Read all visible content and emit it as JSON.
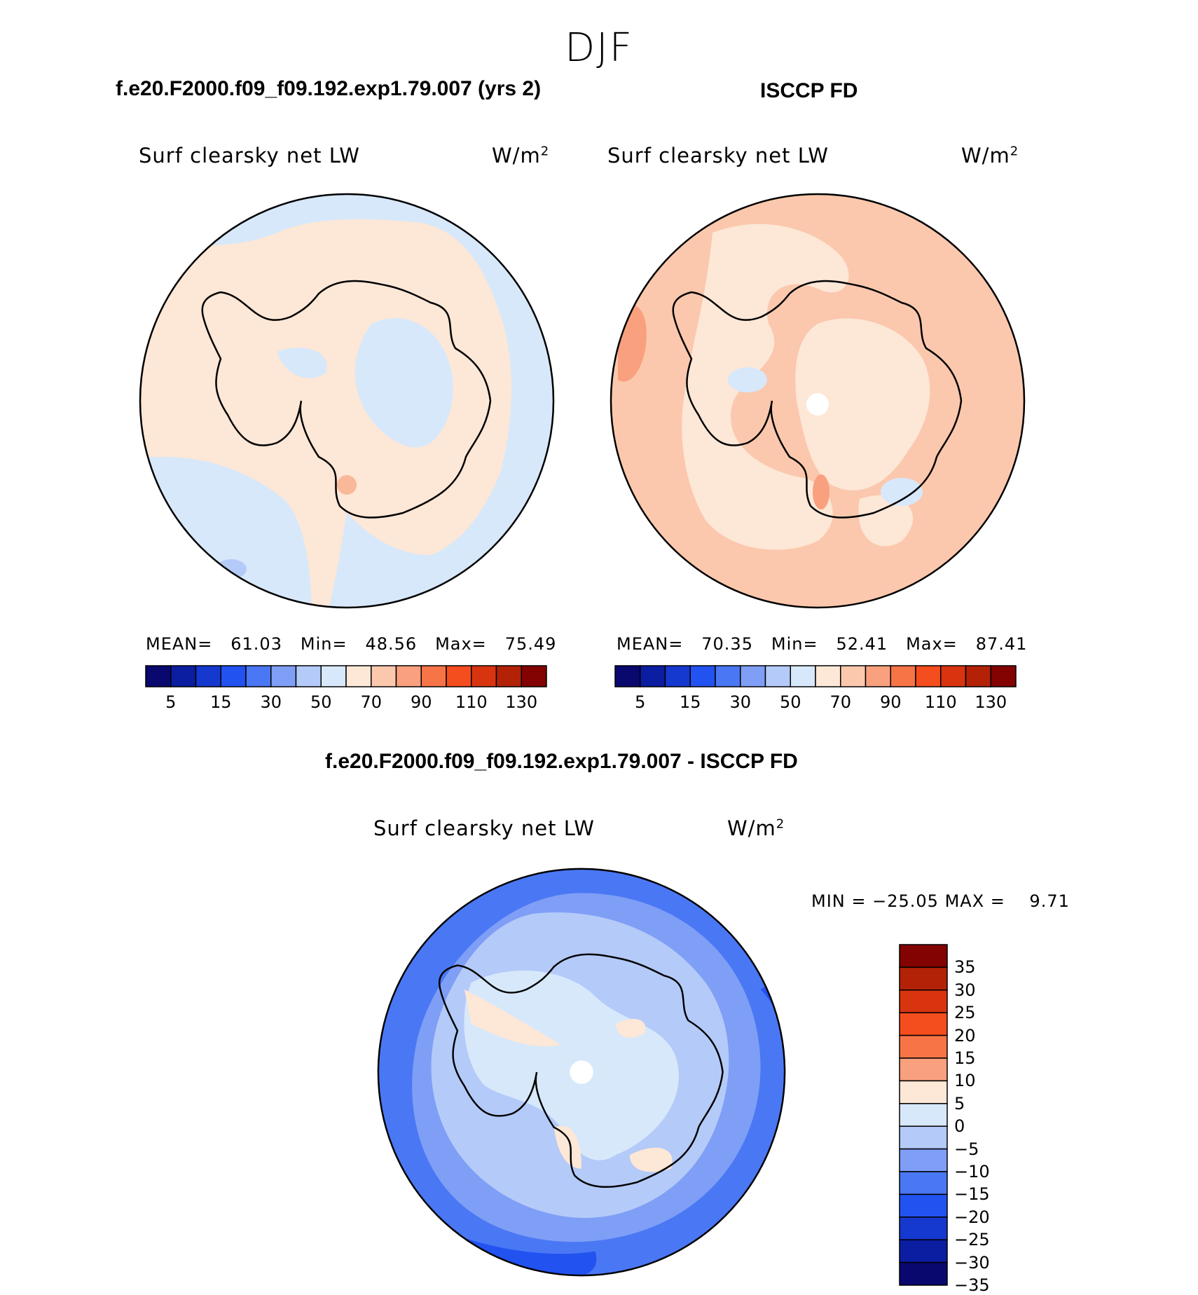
{
  "main_title": "DJF",
  "left_panel": {
    "case": "f.e20.F2000.f09_f09.192.exp1.79.007 (yrs 2)",
    "variable": "Surf clearsky net LW",
    "units_base": "W/m",
    "units_exp": "2",
    "mean_label": "MEAN=",
    "mean": "61.03",
    "min_label": "Min=",
    "min": "48.56",
    "max_label": "Max=",
    "max": "75.49"
  },
  "right_panel": {
    "case": "ISCCP FD",
    "variable": "Surf clearsky net LW",
    "units_base": "W/m",
    "units_exp": "2",
    "mean_label": "MEAN=",
    "mean": "70.35",
    "min_label": "Min=",
    "min": "52.41",
    "max_label": "Max=",
    "max": "87.41"
  },
  "colorbar_abs": {
    "colors": [
      "#08086e",
      "#0b1da0",
      "#1538cf",
      "#2253f0",
      "#4a78f4",
      "#7f9ef6",
      "#b4caf9",
      "#d7e8fb",
      "#fde7d6",
      "#fbc8ad",
      "#f9a07e",
      "#f77446",
      "#f44d1e",
      "#d93410",
      "#b32207",
      "#820302"
    ],
    "tick_labels": [
      "5",
      "15",
      "30",
      "50",
      "70",
      "90",
      "110",
      "130"
    ]
  },
  "diff_panel": {
    "title": "f.e20.F2000.f09_f09.192.exp1.79.007 - ISCCP FD",
    "variable": "Surf clearsky net LW",
    "units_base": "W/m",
    "units_exp": "2",
    "min_label": "MIN =",
    "min": "−25.05",
    "max_label": "MAX =",
    "max": "9.71"
  },
  "colorbar_diff": {
    "colors_top_to_bottom": [
      "#820302",
      "#b32207",
      "#d93410",
      "#f44d1e",
      "#f77446",
      "#f9a07e",
      "#fde7d6",
      "#d7e8fb",
      "#b4caf9",
      "#7f9ef6",
      "#4a78f4",
      "#2253f0",
      "#1538cf",
      "#0b1da0",
      "#08086e"
    ],
    "tick_labels": [
      "35",
      "30",
      "25",
      "20",
      "15",
      "10",
      "5",
      "0",
      "−5",
      "−10",
      "−15",
      "−20",
      "−25",
      "−30",
      "−35"
    ]
  }
}
